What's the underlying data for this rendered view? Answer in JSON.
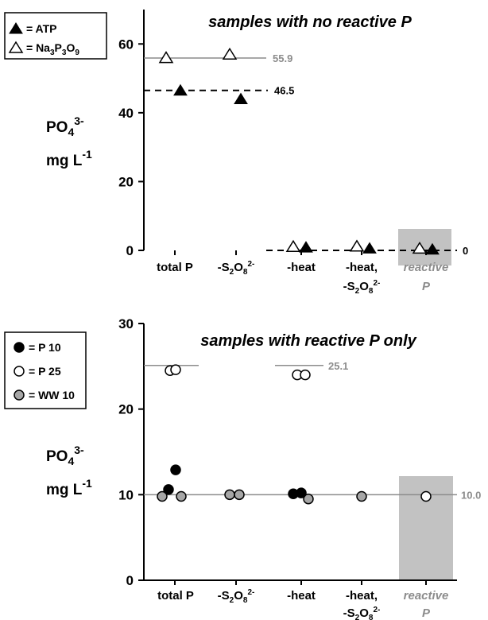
{
  "chart_data": [
    {
      "type": "scatter",
      "title": "samples with no reactive P",
      "ylabel_main": "PO",
      "ylabel_sub": "4",
      "ylabel_sup": "3-",
      "ylabel_unit_main": "mg L",
      "ylabel_unit_sup": "-1",
      "ylim": [
        0,
        70
      ],
      "yticks": [
        "0",
        "20",
        "40",
        "60"
      ],
      "categories": [
        {
          "line1": "total P",
          "line2": ""
        },
        {
          "line1": "-S",
          "line1_sub": "2",
          "line1_mid": "O",
          "line1_sub2": "8",
          "line1_sup": "2-",
          "line2": ""
        },
        {
          "line1": "-heat",
          "line2": ""
        },
        {
          "line1": "-heat,",
          "line2": "-S2O8 2-"
        },
        {
          "line1": "reactive",
          "line2": "P"
        }
      ],
      "legend": [
        {
          "symbol": "filled-triangle",
          "label": "= ATP"
        },
        {
          "symbol": "open-triangle",
          "label": "= Na3P3O9"
        }
      ],
      "reference_lines": [
        {
          "label": "55.9",
          "value": 55.9,
          "style": "solid-grey"
        },
        {
          "label": "46.5",
          "value": 46.5,
          "style": "dashed-black"
        },
        {
          "label": "0",
          "value": 0,
          "style": "dashed-black"
        }
      ],
      "series": [
        {
          "name": "ATP",
          "marker": "filled-triangle",
          "points": [
            {
              "cat": 0,
              "y": 46.5
            },
            {
              "cat": 1,
              "y": 44.0
            },
            {
              "cat": 2,
              "y": 0.9
            },
            {
              "cat": 3,
              "y": 0.6
            },
            {
              "cat": 4,
              "y": 0.3
            }
          ]
        },
        {
          "name": "Na3P3O9",
          "marker": "open-triangle",
          "points": [
            {
              "cat": 0,
              "y": 56.0
            },
            {
              "cat": 1,
              "y": 57.0
            },
            {
              "cat": 2,
              "y": 1.1
            },
            {
              "cat": 3,
              "y": 1.2
            },
            {
              "cat": 4,
              "y": 0.6
            }
          ]
        }
      ]
    },
    {
      "type": "scatter",
      "title": "samples with reactive P only",
      "ylim": [
        0,
        30
      ],
      "yticks": [
        "0",
        "10",
        "20",
        "30"
      ],
      "legend": [
        {
          "symbol": "filled-circle",
          "label": "= P 10"
        },
        {
          "symbol": "open-circle",
          "label": "= P 25"
        },
        {
          "symbol": "grey-circle",
          "label": "= WW 10"
        }
      ],
      "reference_lines": [
        {
          "label": "25.1",
          "value": 25.1,
          "style": "solid-grey"
        },
        {
          "label": "10.0",
          "value": 10.0,
          "style": "solid-grey"
        }
      ],
      "series": [
        {
          "name": "P 10",
          "marker": "filled-circle",
          "points": [
            {
              "cat": 0,
              "y": 10.6
            },
            {
              "cat": 0,
              "y": 12.9
            },
            {
              "cat": 2,
              "y": 10.1
            },
            {
              "cat": 2,
              "y": 10.2
            }
          ]
        },
        {
          "name": "P 25",
          "marker": "open-circle",
          "points": [
            {
              "cat": 0,
              "y": 24.5
            },
            {
              "cat": 0,
              "y": 24.6
            },
            {
              "cat": 2,
              "y": 24.0
            },
            {
              "cat": 2,
              "y": 24.0
            },
            {
              "cat": 4,
              "y": 9.8
            }
          ]
        },
        {
          "name": "WW 10",
          "marker": "grey-circle",
          "points": [
            {
              "cat": 0,
              "y": 9.8
            },
            {
              "cat": 0,
              "y": 9.8
            },
            {
              "cat": 1,
              "y": 10.0
            },
            {
              "cat": 1,
              "y": 10.0
            },
            {
              "cat": 2,
              "y": 9.5
            },
            {
              "cat": 3,
              "y": 9.8
            }
          ]
        }
      ]
    }
  ]
}
